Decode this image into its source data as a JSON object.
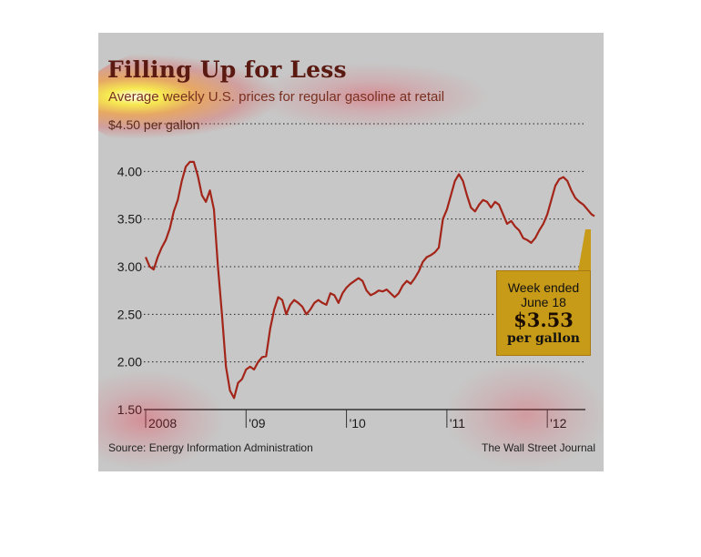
{
  "title": "Filling Up for Less",
  "subtitle": "Average weekly U.S. prices for regular gasoline at retail",
  "unit_label": "$4.50 per gallon",
  "source": "Source: Energy Information Administration",
  "credit": "The Wall Street Journal",
  "callout": {
    "line1": "Week ended",
    "line2": "June 18",
    "value": "$3.53",
    "unit": "per gallon"
  },
  "colors": {
    "background": "#c7c7c7",
    "line": "#a32418",
    "callout": "#c79a18",
    "title": "#5a1a12"
  },
  "chart_data": {
    "type": "line",
    "title": "Filling Up for Less",
    "subtitle": "Average weekly U.S. prices for regular gasoline at retail",
    "ylabel": "$4.50 per gallon",
    "ylim": [
      1.5,
      4.5
    ],
    "xlim": [
      2008.0,
      2012.47
    ],
    "y_ticks": [
      {
        "value": 4.5,
        "label": ""
      },
      {
        "value": 4.0,
        "label": "4.00"
      },
      {
        "value": 3.5,
        "label": "3.50"
      },
      {
        "value": 3.0,
        "label": "3.00"
      },
      {
        "value": 2.5,
        "label": "2.50"
      },
      {
        "value": 2.0,
        "label": "2.00"
      },
      {
        "value": 1.5,
        "label": "1.50"
      }
    ],
    "x_ticks": [
      {
        "value": 2008.0,
        "label": "2008"
      },
      {
        "value": 2009.0,
        "label": "'09"
      },
      {
        "value": 2010.0,
        "label": "'10"
      },
      {
        "value": 2011.0,
        "label": "'11"
      },
      {
        "value": 2012.0,
        "label": "'12"
      }
    ],
    "grid": true,
    "series": [
      {
        "x": [
          2008.0,
          2008.04,
          2008.08,
          2008.12,
          2008.16,
          2008.2,
          2008.24,
          2008.28,
          2008.32,
          2008.36,
          2008.4,
          2008.44,
          2008.48,
          2008.52,
          2008.56,
          2008.6,
          2008.64,
          2008.68,
          2008.72,
          2008.76,
          2008.8,
          2008.84,
          2008.88,
          2008.92,
          2008.96,
          2009.0,
          2009.04,
          2009.08,
          2009.12,
          2009.16,
          2009.2,
          2009.24,
          2009.28,
          2009.32,
          2009.36,
          2009.4,
          2009.44,
          2009.48,
          2009.52,
          2009.56,
          2009.6,
          2009.64,
          2009.68,
          2009.72,
          2009.76,
          2009.8,
          2009.84,
          2009.88,
          2009.92,
          2009.96,
          2010.0,
          2010.04,
          2010.08,
          2010.12,
          2010.16,
          2010.2,
          2010.24,
          2010.28,
          2010.32,
          2010.36,
          2010.4,
          2010.44,
          2010.48,
          2010.52,
          2010.56,
          2010.6,
          2010.64,
          2010.68,
          2010.72,
          2010.76,
          2010.8,
          2010.84,
          2010.88,
          2010.92,
          2010.96,
          2011.0,
          2011.04,
          2011.08,
          2011.12,
          2011.16,
          2011.2,
          2011.24,
          2011.28,
          2011.32,
          2011.36,
          2011.4,
          2011.44,
          2011.48,
          2011.52,
          2011.56,
          2011.6,
          2011.64,
          2011.68,
          2011.72,
          2011.76,
          2011.8,
          2011.84,
          2011.88,
          2011.92,
          2011.96,
          2012.0,
          2012.04,
          2012.08,
          2012.12,
          2012.16,
          2012.2,
          2012.24,
          2012.28,
          2012.32,
          2012.36,
          2012.4,
          2012.44,
          2012.47
        ],
        "y": [
          3.1,
          3.0,
          2.97,
          3.1,
          3.2,
          3.28,
          3.4,
          3.58,
          3.7,
          3.9,
          4.05,
          4.1,
          4.1,
          3.95,
          3.75,
          3.68,
          3.8,
          3.6,
          3.0,
          2.5,
          1.95,
          1.7,
          1.62,
          1.78,
          1.82,
          1.92,
          1.95,
          1.92,
          2.0,
          2.05,
          2.06,
          2.35,
          2.55,
          2.68,
          2.65,
          2.5,
          2.6,
          2.65,
          2.62,
          2.58,
          2.5,
          2.55,
          2.62,
          2.65,
          2.62,
          2.6,
          2.72,
          2.7,
          2.62,
          2.72,
          2.78,
          2.82,
          2.85,
          2.88,
          2.85,
          2.75,
          2.7,
          2.72,
          2.75,
          2.74,
          2.76,
          2.72,
          2.68,
          2.72,
          2.8,
          2.85,
          2.82,
          2.88,
          2.95,
          3.05,
          3.1,
          3.12,
          3.15,
          3.2,
          3.5,
          3.6,
          3.75,
          3.9,
          3.97,
          3.9,
          3.75,
          3.62,
          3.58,
          3.65,
          3.7,
          3.68,
          3.62,
          3.68,
          3.65,
          3.55,
          3.45,
          3.48,
          3.42,
          3.38,
          3.3,
          3.28,
          3.25,
          3.3,
          3.38,
          3.45,
          3.55,
          3.7,
          3.85,
          3.92,
          3.94,
          3.9,
          3.8,
          3.72,
          3.68,
          3.65,
          3.6,
          3.55,
          3.53
        ]
      }
    ]
  }
}
